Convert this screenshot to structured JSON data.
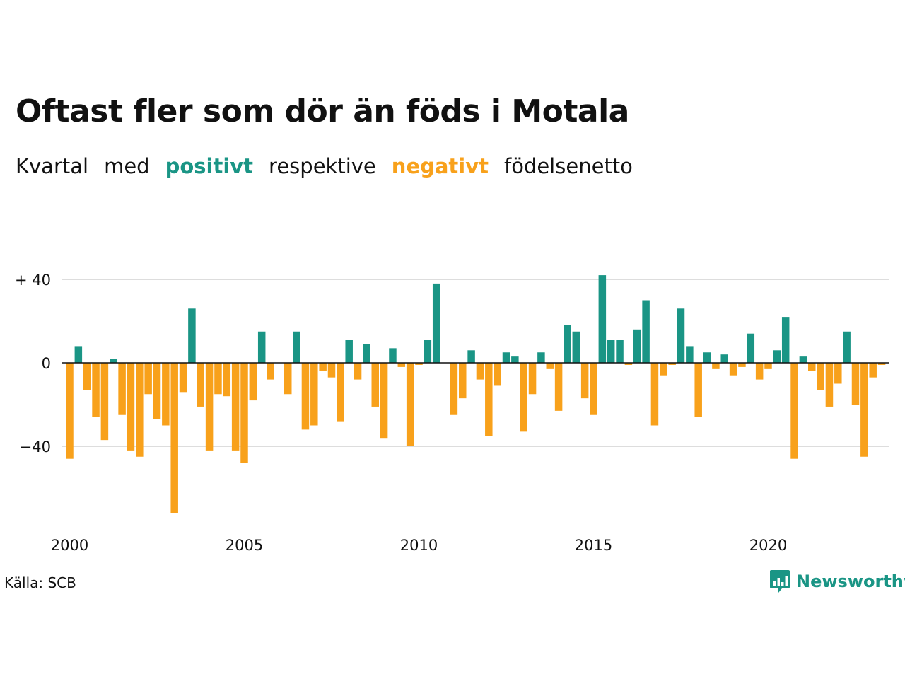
{
  "title": "Oftast fler som dör än föds i Motala",
  "subtitle": {
    "part1": "Kvartal",
    "part2": "med",
    "positive": "positivt",
    "part3": "respektive",
    "negative": "negativt",
    "part4": "födelsenetto"
  },
  "colors": {
    "positive": "#1a9585",
    "negative": "#f8a11b",
    "grid": "#dddddd",
    "text": "#111111"
  },
  "source": "Källa: SCB",
  "logo": {
    "text": "Newsworthy",
    "icon": "newsworthy-chart-bubble-icon"
  },
  "chart_data": {
    "type": "bar",
    "x_start": "2000 Q1",
    "period": "quarter",
    "ylim": [
      -74,
      44
    ],
    "yticks": [
      {
        "value": 40,
        "label": "+ 40"
      },
      {
        "value": 0,
        "label": "0"
      },
      {
        "value": -40,
        "label": "−40"
      }
    ],
    "xticks": [
      {
        "value": 2000,
        "label": "2000"
      },
      {
        "value": 2005,
        "label": "2005"
      },
      {
        "value": 2010,
        "label": "2010"
      },
      {
        "value": 2015,
        "label": "2015"
      },
      {
        "value": 2020,
        "label": "2020"
      }
    ],
    "values": [
      -46,
      8,
      -13,
      -26,
      -37,
      2,
      -25,
      -42,
      -45,
      -15,
      -27,
      -30,
      -72,
      -14,
      26,
      -21,
      -42,
      -15,
      -16,
      -42,
      -48,
      -18,
      15,
      -8,
      0,
      -15,
      15,
      -32,
      -30,
      -4,
      -7,
      -28,
      11,
      -8,
      9,
      -21,
      -36,
      7,
      -2,
      -40,
      -1,
      11,
      38,
      0,
      -25,
      -17,
      6,
      -8,
      -35,
      -11,
      5,
      3,
      -33,
      -15,
      5,
      -3,
      -23,
      18,
      15,
      -17,
      -25,
      42,
      11,
      11,
      -1,
      16,
      30,
      -30,
      -6,
      -1,
      26,
      8,
      -26,
      5,
      -3,
      4,
      -6,
      -2,
      14,
      -8,
      -3,
      6,
      22,
      -46,
      3,
      -4,
      -13,
      -21,
      -10,
      15,
      -20,
      -45,
      -7,
      -1
    ]
  }
}
